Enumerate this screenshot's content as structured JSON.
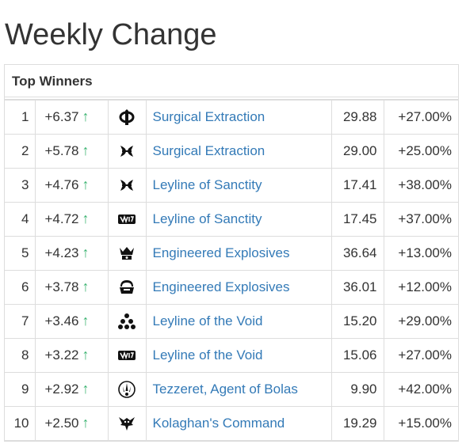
{
  "page": {
    "title": "Weekly Change"
  },
  "panel": {
    "heading": "Top Winners"
  },
  "colors": {
    "arrow": "#3bb371",
    "link": "#337ab7",
    "border": "#dddddd"
  },
  "rows": [
    {
      "rank": "1",
      "change": "+6.37",
      "arrow": "↑",
      "set_icon": "phi-set-icon",
      "card": "Surgical Extraction",
      "price": "29.88",
      "pct": "+27.00%"
    },
    {
      "rank": "2",
      "change": "+5.78",
      "arrow": "↑",
      "set_icon": "crossed-set-icon",
      "card": "Surgical Extraction",
      "price": "29.00",
      "pct": "+25.00%"
    },
    {
      "rank": "3",
      "change": "+4.76",
      "arrow": "↑",
      "set_icon": "crossed-set-icon",
      "card": "Leyline of Sanctity",
      "price": "17.41",
      "pct": "+38.00%"
    },
    {
      "rank": "4",
      "change": "+4.72",
      "arrow": "↑",
      "set_icon": "banner-set-icon",
      "card": "Leyline of Sanctity",
      "price": "17.45",
      "pct": "+37.00%"
    },
    {
      "rank": "5",
      "change": "+4.23",
      "arrow": "↑",
      "set_icon": "crown-set-icon",
      "card": "Engineered Explosives",
      "price": "36.64",
      "pct": "+13.00%"
    },
    {
      "rank": "6",
      "change": "+3.78",
      "arrow": "↑",
      "set_icon": "helmet-set-icon",
      "card": "Engineered Explosives",
      "price": "36.01",
      "pct": "+12.00%"
    },
    {
      "rank": "7",
      "change": "+3.46",
      "arrow": "↑",
      "set_icon": "cluster-set-icon",
      "card": "Leyline of the Void",
      "price": "15.20",
      "pct": "+29.00%"
    },
    {
      "rank": "8",
      "change": "+3.22",
      "arrow": "↑",
      "set_icon": "banner-set-icon",
      "card": "Leyline of the Void",
      "price": "15.06",
      "pct": "+27.00%"
    },
    {
      "rank": "9",
      "change": "+2.92",
      "arrow": "↑",
      "set_icon": "planeswalker-set-icon",
      "card": "Tezzeret, Agent of Bolas",
      "price": "9.90",
      "pct": "+42.00%"
    },
    {
      "rank": "10",
      "change": "+2.50",
      "arrow": "↑",
      "set_icon": "dragon-set-icon",
      "card": "Kolaghan's Command",
      "price": "19.29",
      "pct": "+15.00%"
    }
  ]
}
